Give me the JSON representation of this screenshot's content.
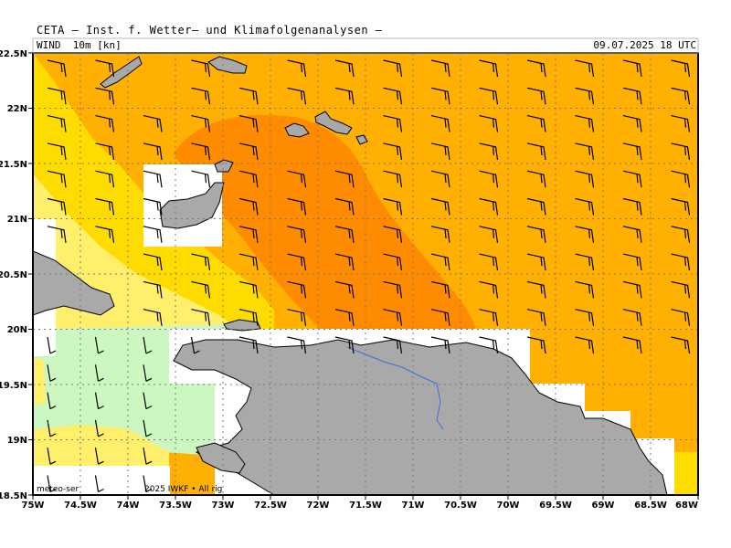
{
  "header": {
    "title": "CETA — Inst. f. Wetter— und Klimafolgenanalysen —",
    "variable": "WIND  10m [kn]",
    "valid_time": "09.07.2025 18 UTC"
  },
  "credit": {
    "left": "meteo-ser",
    "right": "2025 IWKF • All rig"
  },
  "axes": {
    "x_ticks": [
      "75W",
      "74.5W",
      "74W",
      "73.5W",
      "73W",
      "72.5W",
      "72W",
      "71.5W",
      "71W",
      "70.5W",
      "70W",
      "69.5W",
      "69W",
      "68.5W",
      "68W"
    ],
    "y_ticks": [
      "22.5N",
      "22N",
      "21.5N",
      "21N",
      "20.5N",
      "20N",
      "19.5N",
      "19N",
      "18.5N"
    ],
    "lon_range": [
      -75,
      -68
    ],
    "lat_range": [
      18.5,
      22.5
    ]
  },
  "colors": {
    "land": "#a9a9a9",
    "low_wind": "#ccf7c0",
    "light_yellow": "#ffef6a",
    "yellow": "#ffdc00",
    "gold": "#ffb000",
    "orange": "#ff8c00",
    "river": "#3a6fe0"
  }
}
